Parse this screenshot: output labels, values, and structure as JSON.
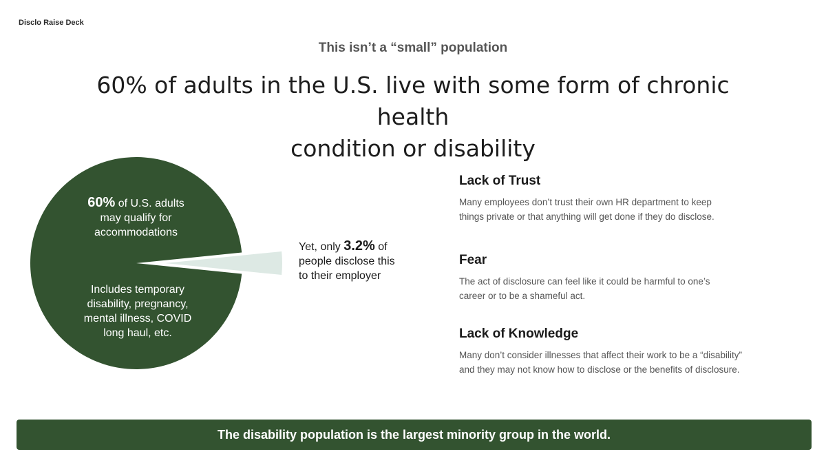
{
  "deck_label": "Disclo Raise Deck",
  "kicker": "This isn’t a “small” population",
  "headline": {
    "line1": "60% of adults in the U.S. live with some form of chronic health",
    "line2": "condition or disability"
  },
  "chart_data": {
    "type": "pie",
    "slices": [
      {
        "label": "U.S. adults who may qualify for accommodations",
        "value": 60
      },
      {
        "label": "People who disclose to their employer",
        "value": 3.2
      }
    ],
    "colors": {
      "main": "#335330",
      "slice": "#dde9e4"
    },
    "annotations": {
      "main_big": "60%",
      "main_rest_1": " of U.S. adults",
      "main_line2": "may qualify for",
      "main_line3": "accommodations",
      "includes_1": "Includes temporary",
      "includes_2": "disability, pregnancy,",
      "includes_3": "mental illness, COVID",
      "includes_4": "long haul, etc.",
      "slice_pre": "Yet, only ",
      "slice_big": "3.2%",
      "slice_post": " of",
      "slice_line2": "people disclose this",
      "slice_line3": "to their employer"
    }
  },
  "reasons": [
    {
      "title": "Lack of Trust",
      "line1": "Many employees don’t trust their own HR department to keep",
      "line2": "things private or that anything will get done if they do disclose."
    },
    {
      "title": "Fear",
      "line1": "The act of disclosure can feel like it could be harmful to one’s",
      "line2": "career or to be a shameful act."
    },
    {
      "title": "Lack of Knowledge",
      "line1": "Many don’t consider illnesses that affect their work to be a “disability”",
      "line2": "and they may not know how to disclose or the benefits of disclosure."
    }
  ],
  "banner": "The disability population is the largest minority group in the world."
}
